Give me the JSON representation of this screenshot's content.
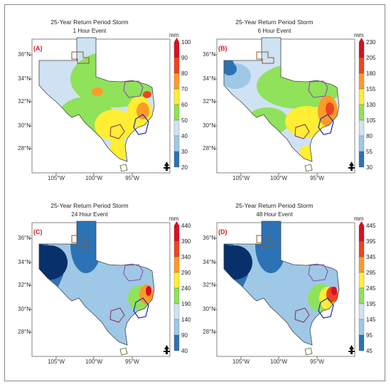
{
  "colors": [
    "#08306b",
    "#2c73b5",
    "#9ec8e6",
    "#cfe2f3",
    "#8fe25a",
    "#ffee33",
    "#ff9a2a",
    "#f1441d",
    "#d90f1f"
  ],
  "unit": "mm",
  "lat_labels": [
    "36°N",
    "34°N",
    "32°N",
    "30°N",
    "28°N"
  ],
  "lon_labels": [
    "105°W",
    "100°W",
    "95°W"
  ],
  "north_arrow_icon": "north-arrow-icon",
  "panels": [
    {
      "title": "25-Year Return Period Storm",
      "duration": "1 Hour Event",
      "letter": "(A)",
      "colorbar": [
        "100",
        "90",
        "80",
        "70",
        "60",
        "50",
        "40",
        "30",
        "20"
      ]
    },
    {
      "title": "25-Year Return Period Storm",
      "duration": "6 Hour Event",
      "letter": "(B)",
      "colorbar": [
        "230",
        "205",
        "180",
        "155",
        "130",
        "105",
        "80",
        "55",
        "30"
      ]
    },
    {
      "title": "25-Year Return Period Storm",
      "duration": "24 Hour Event",
      "letter": "(C)",
      "colorbar": [
        "440",
        "390",
        "340",
        "290",
        "240",
        "190",
        "140",
        "90",
        "40"
      ]
    },
    {
      "title": "25-Year Return Period Storm",
      "duration": "48 Hour Event",
      "letter": "(D)",
      "colorbar": [
        "445",
        "395",
        "345",
        "295",
        "245",
        "195",
        "145",
        "95",
        "45"
      ]
    }
  ]
}
